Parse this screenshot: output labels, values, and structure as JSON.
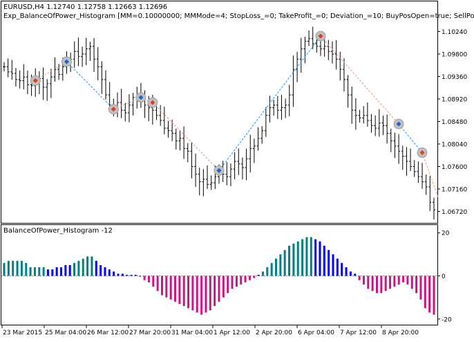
{
  "main_chart": {
    "symbol_line": "EURUSD,H4  1.12740 1.12758 1.12663 1.12696",
    "expert_line": "Exp_BalanceOfPower_Histogram [MM=0.10000000; MMMode=4; StopLoss_=0; TakeProfit_=0; Deviation_=10; BuyPosOpen=true; SellPosOpen=true",
    "price_labels": [
      "1.10240",
      "1.09800",
      "1.09360",
      "1.08920",
      "1.08480",
      "1.08040",
      "1.07600",
      "1.07160",
      "1.06720"
    ],
    "line_color": "#000000"
  },
  "indicator": {
    "title": "BalanceOfPower_Histogram -12",
    "levels": [
      "20",
      "0",
      "-20"
    ],
    "colors": {
      "bull": "#008080",
      "bull_strong": "#0000ff",
      "bear": "#c71585"
    }
  },
  "time_labels": [
    "23 Mar 2015",
    "25 Mar 04:00",
    "26 Mar 12:00",
    "27 Mar 20:00",
    "31 Mar 04:00",
    "1 Apr 12:00",
    "2 Apr 20:00",
    "6 Apr 04:00",
    "7 Apr 12:00",
    "8 Apr 20:00"
  ],
  "chart_data": [
    {
      "type": "line",
      "title": "EURUSD,H4",
      "y_axis_ticks": [
        1.1024,
        1.098,
        1.0936,
        1.0892,
        1.0848,
        1.0804,
        1.076,
        1.0716,
        1.0672
      ],
      "ylim": [
        1.0655,
        1.1045
      ],
      "bars_close": [
        1.0955,
        1.0945,
        1.0942,
        1.093,
        1.0928,
        1.0935,
        1.092,
        1.0918,
        1.0925,
        1.0932,
        1.0915,
        1.0922,
        1.0935,
        1.095,
        1.094,
        1.0955,
        1.096,
        1.097,
        1.0985,
        1.0975,
        1.098,
        1.099,
        1.0995,
        1.097,
        1.0955,
        1.093,
        1.09,
        1.088,
        1.087,
        1.0885,
        1.087,
        1.0865,
        1.088,
        1.0895,
        1.09,
        1.0898,
        1.088,
        1.0875,
        1.087,
        1.086,
        1.085,
        1.0835,
        1.083,
        1.0825,
        1.081,
        1.0815,
        1.0795,
        1.079,
        1.076,
        1.0745,
        1.073,
        1.0735,
        1.0725,
        1.0728,
        1.074,
        1.0755,
        1.0745,
        1.074,
        1.0755,
        1.077,
        1.0765,
        1.0758,
        1.0775,
        1.0795,
        1.08,
        1.0815,
        1.083,
        1.086,
        1.0875,
        1.088,
        1.087,
        1.0875,
        1.088,
        1.09,
        1.095,
        1.097,
        1.099,
        1.1005,
        1.101,
        1.1,
        1.0995,
        1.099,
        1.0995,
        1.0985,
        1.098,
        1.097,
        1.095,
        1.093,
        1.09,
        1.087,
        1.086,
        1.0855,
        1.086,
        1.085,
        1.084,
        1.0835,
        1.0845,
        1.084,
        1.0825,
        1.081,
        1.08,
        1.079,
        1.078,
        1.077,
        1.076,
        1.075,
        1.074,
        1.073,
        1.072,
        1.069,
        1.0675
      ],
      "signals": [
        {
          "type": "sell",
          "index": 8,
          "price": 1.0928
        },
        {
          "type": "buy",
          "index": 16,
          "price": 1.0965
        },
        {
          "type": "sell",
          "index": 28,
          "price": 1.0872
        },
        {
          "type": "buy",
          "index": 35,
          "price": 1.0895
        },
        {
          "type": "sell",
          "index": 38,
          "price": 1.0885
        },
        {
          "type": "buy",
          "index": 55,
          "price": 1.0752
        },
        {
          "type": "sell",
          "index": 81,
          "price": 1.1015
        },
        {
          "type": "buy",
          "index": 101,
          "price": 1.0843
        },
        {
          "type": "sell",
          "index": 107,
          "price": 1.0787
        }
      ]
    },
    {
      "type": "bar",
      "title": "BalanceOfPower_Histogram -12",
      "ylim": [
        -22,
        22
      ],
      "y_axis_ticks": [
        20,
        0,
        -20
      ],
      "values": [
        6,
        7,
        7,
        7,
        7,
        6,
        4,
        4,
        4,
        4,
        3,
        3,
        4,
        4,
        5,
        5,
        6,
        7,
        8,
        9,
        9,
        7,
        5,
        4,
        3,
        2,
        1,
        1,
        0.5,
        0.5,
        0.5,
        0,
        -2,
        -3,
        -5,
        -7,
        -9,
        -10,
        -11,
        -12,
        -13,
        -14,
        -15,
        -16,
        -17,
        -18,
        -17,
        -16,
        -14,
        -12,
        -10,
        -8,
        -6,
        -5,
        -4,
        -3,
        -2,
        -1,
        0.5,
        2,
        4,
        6,
        8,
        10,
        12,
        14,
        15,
        16,
        17,
        18,
        18,
        17,
        16,
        14,
        12,
        10,
        8,
        6,
        4,
        2,
        1,
        -2,
        -4,
        -6,
        -7,
        -8,
        -8,
        -7,
        -6,
        -5,
        -4,
        -3,
        -4,
        -6,
        -8,
        -11,
        -15,
        -17,
        -18
      ],
      "bar_state": [
        "bull",
        "bull",
        "bull",
        "bull",
        "bull",
        "bull",
        "bull",
        "bull",
        "bull",
        "bull",
        "bull_strong",
        "bull_strong",
        "bull_strong",
        "bull_strong",
        "bull_strong",
        "bull_strong",
        "bull",
        "bull",
        "bull",
        "bull",
        "bull",
        "bull_strong",
        "bull_strong",
        "bull_strong",
        "bull_strong",
        "bull_strong",
        "bull_strong",
        "bull_strong",
        "bull_strong",
        "bull_strong",
        "bull_strong",
        "bull_strong",
        "bear",
        "bear",
        "bear",
        "bear",
        "bear",
        "bear",
        "bear",
        "bear",
        "bear",
        "bear",
        "bear",
        "bear",
        "bear",
        "bear",
        "bear",
        "bear",
        "bear",
        "bear",
        "bear",
        "bear",
        "bear",
        "bear",
        "bear",
        "bear",
        "bear",
        "bear",
        "bull_strong",
        "bull",
        "bull",
        "bull",
        "bull",
        "bull",
        "bull",
        "bull",
        "bull",
        "bull",
        "bull",
        "bull",
        "bull",
        "bull_strong",
        "bull_strong",
        "bull_strong",
        "bull_strong",
        "bull_strong",
        "bull_strong",
        "bull_strong",
        "bull_strong",
        "bull_strong",
        "bull_strong",
        "bear",
        "bear",
        "bear",
        "bear",
        "bear",
        "bear",
        "bear",
        "bear",
        "bear",
        "bear",
        "bear",
        "bear",
        "bear",
        "bear",
        "bear",
        "bear",
        "bear",
        "bear"
      ]
    }
  ]
}
